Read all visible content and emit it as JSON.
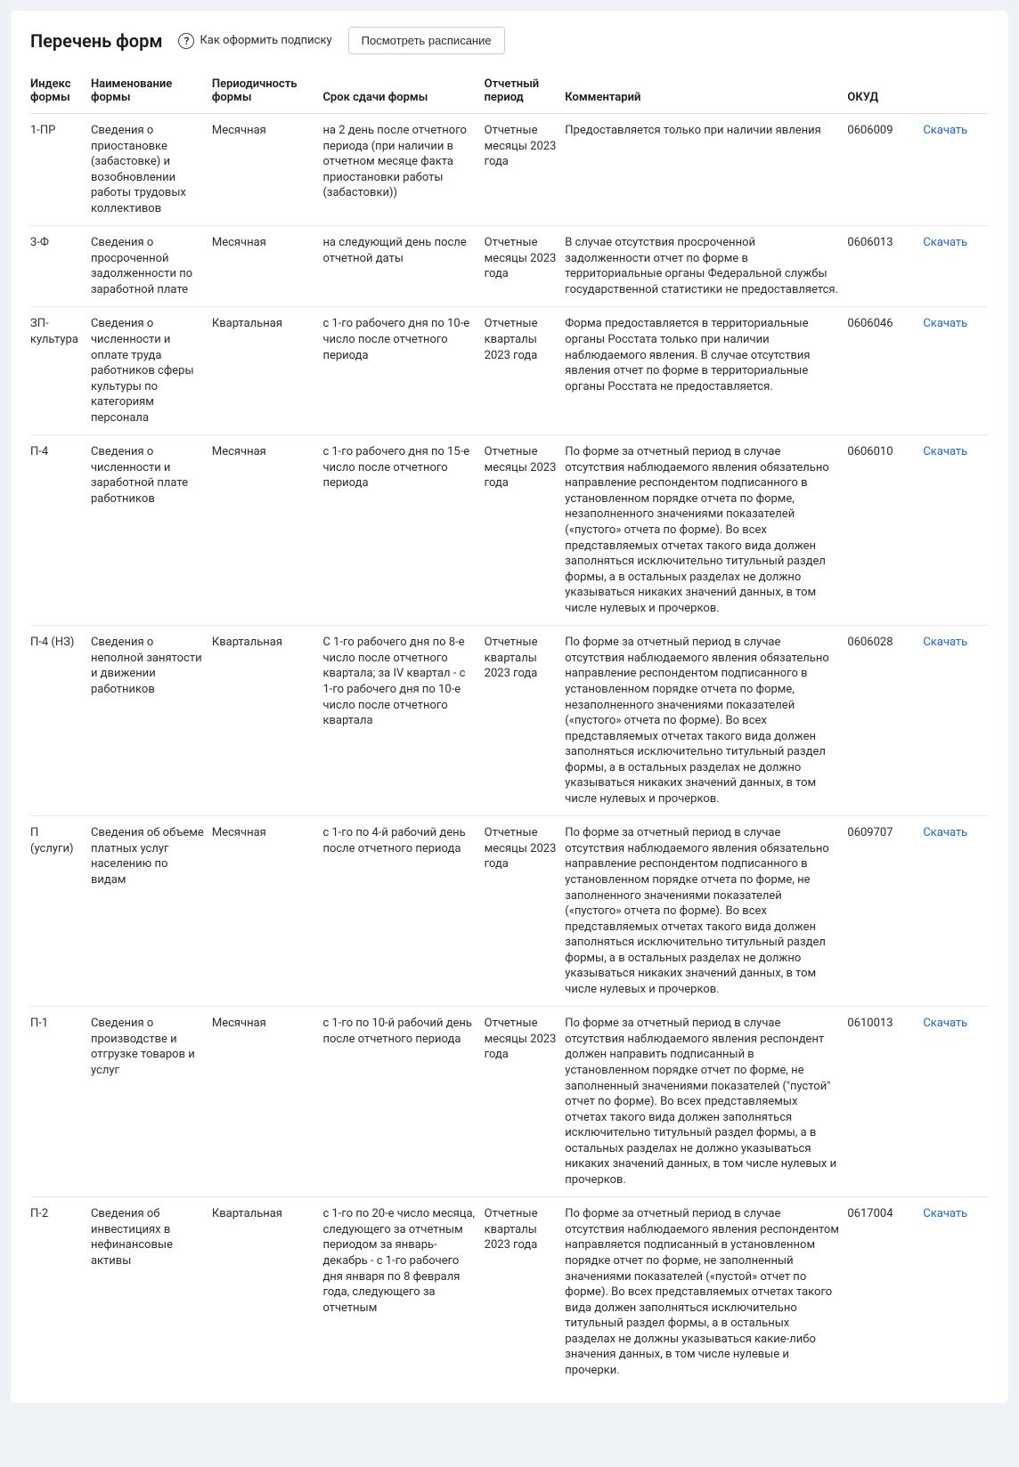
{
  "title": "Перечень форм",
  "help_label": "Как оформить подписку",
  "schedule_button": "Посмотреть расписание",
  "download_label": "Скачать",
  "columns": {
    "index": "Индекс формы",
    "name": "Наименование формы",
    "periodicity": "Периодичность формы",
    "deadline": "Срок сдачи формы",
    "report_period": "Отчетный период",
    "comment": "Комментарий",
    "okud": "ОКУД"
  },
  "rows": [
    {
      "index": "1-ПР",
      "name": "Сведения о приостановке (забастовке) и возобновлении работы трудовых коллективов",
      "periodicity": "Месячная",
      "deadline": "на 2 день после отчетного периода (при наличии в отчетном месяце факта приостановки работы (забастовки))",
      "report_period": "Отчетные месяцы 2023 года",
      "comment": "Предоставляется только при наличии явления",
      "okud": "0606009"
    },
    {
      "index": "3-Ф",
      "name": "Сведения о просроченной задолженности по заработной плате",
      "periodicity": "Месячная",
      "deadline": "на следующий день после отчетной даты",
      "report_period": "Отчетные месяцы 2023 года",
      "comment": "В случае отсутствия просроченной задолженности отчет по форме в территориальные органы Федеральной службы государственной статистики не предоставляется.",
      "okud": "0606013"
    },
    {
      "index": "ЗП-культура",
      "name": "Сведения о численности и оплате труда работников сферы культуры по категориям персонала",
      "periodicity": "Квартальная",
      "deadline": "с 1-го рабочего дня по 10-е число после отчетного периода",
      "report_period": "Отчетные кварталы 2023 года",
      "comment": "Форма предоставляется в территориальные органы Росстата только при наличии наблюдаемого явления. В случае отсутствия явления отчет по форме в территориальные органы Росстата не предоставляется.",
      "okud": "0606046"
    },
    {
      "index": "П-4",
      "name": "Сведения о численности и заработной плате работников",
      "periodicity": "Месячная",
      "deadline": "с 1-го рабочего дня по 15-е число после отчетного периода",
      "report_period": "Отчетные месяцы 2023 года",
      "comment": "По форме за отчетный период в случае отсутствия наблюдаемого явления обязательно направление респондентом подписанного в установленном порядке отчета по форме, незаполненного значениями показателей («пустого» отчета по форме). Во всех представляемых отчетах такого вида должен заполняться исключительно титульный раздел формы, а в остальных разделах не должно указываться никаких значений данных, в том числе нулевых и прочерков.",
      "okud": "0606010"
    },
    {
      "index": "П-4 (НЗ)",
      "name": "Сведения о неполной занятости и движении работников",
      "periodicity": "Квартальная",
      "deadline": "С 1-го рабочего дня по 8-е число после отчетного квартала; за IV квартал - с 1-го рабочего дня по 10-е число после отчетного квартала",
      "report_period": "Отчетные кварталы 2023 года",
      "comment": "По форме за отчетный период в случае отсутствия наблюдаемого явления обязательно направление респондентом подписанного в установленном порядке отчета по форме, незаполненного значениями показателей («пустого» отчета по форме). Во всех представляемых отчетах такого вида должен заполняться исключительно титульный раздел формы, а в остальных разделах не должно указываться никаких значений данных, в том числе нулевых и прочерков.",
      "okud": "0606028"
    },
    {
      "index": "П (услуги)",
      "name": "Сведения об объеме платных услуг населению по видам",
      "periodicity": "Месячная",
      "deadline": "с 1-го по 4-й рабочий день после отчетного периода",
      "report_period": "Отчетные месяцы 2023 года",
      "comment": "По форме за отчетный период в случае отсутствия наблюдаемого явления обязательно направление респондентом подписанного в установленном порядке отчета по форме, не заполненного значениями показателей («пустого» отчета по форме). Во всех представляемых отчетах такого вида должен заполняться исключительно титульный раздел формы, а в остальных разделах не должно указываться никаких значений данных, в том числе нулевых и прочерков.",
      "okud": "0609707"
    },
    {
      "index": "П-1",
      "name": "Сведения о производстве и отгрузке товаров и услуг",
      "periodicity": "Месячная",
      "deadline": "с 1-го по 10-й рабочий день после отчетного периода",
      "report_period": "Отчетные месяцы 2023 года",
      "comment": "По форме за отчетный период в случае отсутствия наблюдаемого явления респондент должен направить подписанный в установленном порядке отчет по форме, не заполненный значениями показателей (\"пустой\" отчет по форме). Во всех представляемых отчетах такого вида должен заполняться исключительно титульный раздел формы, а в остальных разделах не должно указываться никаких значений данных, в том числе нулевых и прочерков.",
      "okud": "0610013"
    },
    {
      "index": "П-2",
      "name": "Сведения об инвестициях в нефинансовые активы",
      "periodicity": "Квартальная",
      "deadline": "с 1-го по 20-е число месяца, следующего за отчетным периодом за январь-декабрь - с 1-го рабочего дня января по 8 февраля года, следующего за отчетным",
      "report_period": "Отчетные кварталы 2023 года",
      "comment": "По форме за отчетный период в случае отсутствия наблюдаемого явления респондентом направляется подписанный в установленном порядке отчет по форме, не заполненный значениями показателей («пустой» отчет по форме). Во всех представляемых отчетах такого вида должен заполняться исключительно титульный раздел формы, а в остальных разделах не должны указываться какие-либо значения данных, в том числе нулевые и прочерки.",
      "okud": "0617004"
    }
  ]
}
